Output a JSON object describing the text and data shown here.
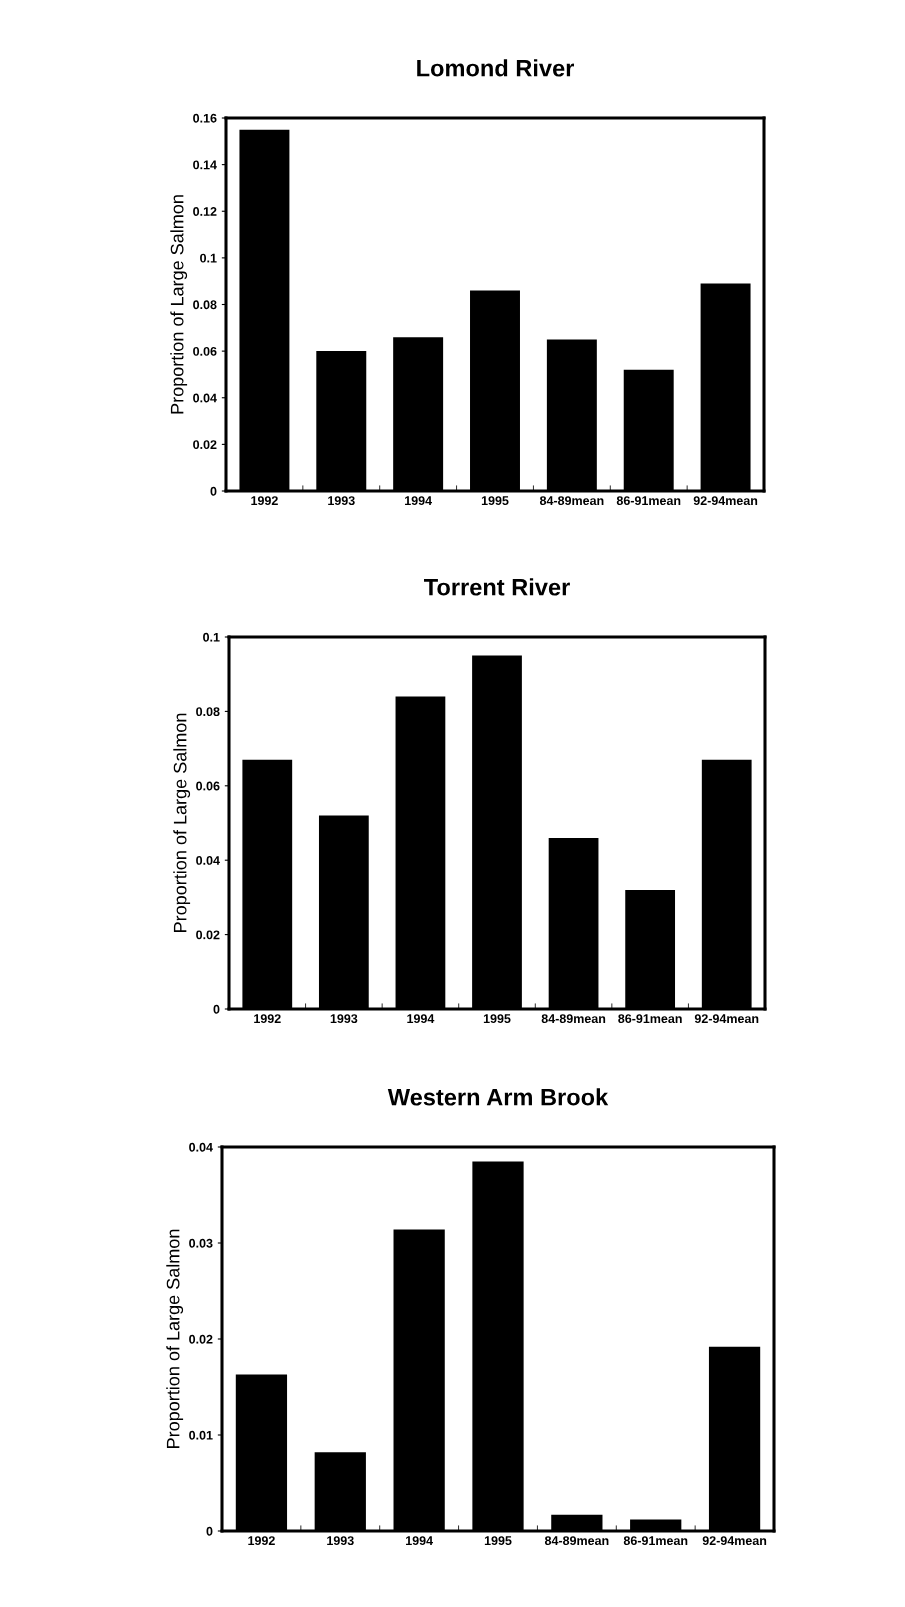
{
  "chart_data": [
    {
      "type": "bar",
      "title": "Lomond River",
      "ylabel": "Proportion of Large Salmon",
      "categories": [
        "1992",
        "1993",
        "1994",
        "1995",
        "84-89mean",
        "86-91mean",
        "92-94mean"
      ],
      "color": "#000000",
      "values": [
        0.155,
        0.06,
        0.066,
        0.086,
        0.065,
        0.052,
        0.089
      ],
      "ylim": [
        0,
        0.16
      ],
      "yticks": [
        0,
        0.02,
        0.04,
        0.06,
        0.08,
        0.1,
        0.12,
        0.14,
        0.16
      ],
      "grid": false,
      "legend": false
    },
    {
      "type": "bar",
      "title": "Torrent River",
      "ylabel": "Proportion of Large Salmon",
      "categories": [
        "1992",
        "1993",
        "1994",
        "1995",
        "84-89mean",
        "86-91mean",
        "92-94mean"
      ],
      "color": "#000000",
      "values": [
        0.067,
        0.052,
        0.084,
        0.095,
        0.046,
        0.032,
        0.067
      ],
      "ylim": [
        0,
        0.1
      ],
      "yticks": [
        0,
        0.02,
        0.04,
        0.06,
        0.08,
        0.1
      ],
      "grid": false,
      "legend": false
    },
    {
      "type": "bar",
      "title": "Western Arm Brook",
      "ylabel": "Proportion of Large Salmon",
      "categories": [
        "1992",
        "1993",
        "1994",
        "1995",
        "84-89mean",
        "86-91mean",
        "92-94mean"
      ],
      "color": "#000000",
      "values": [
        0.0163,
        0.0082,
        0.0314,
        0.0385,
        0.0017,
        0.0012,
        0.0192
      ],
      "ylim": [
        0,
        0.04
      ],
      "yticks": [
        0,
        0.01,
        0.02,
        0.03,
        0.04
      ],
      "grid": false,
      "legend": false
    }
  ]
}
